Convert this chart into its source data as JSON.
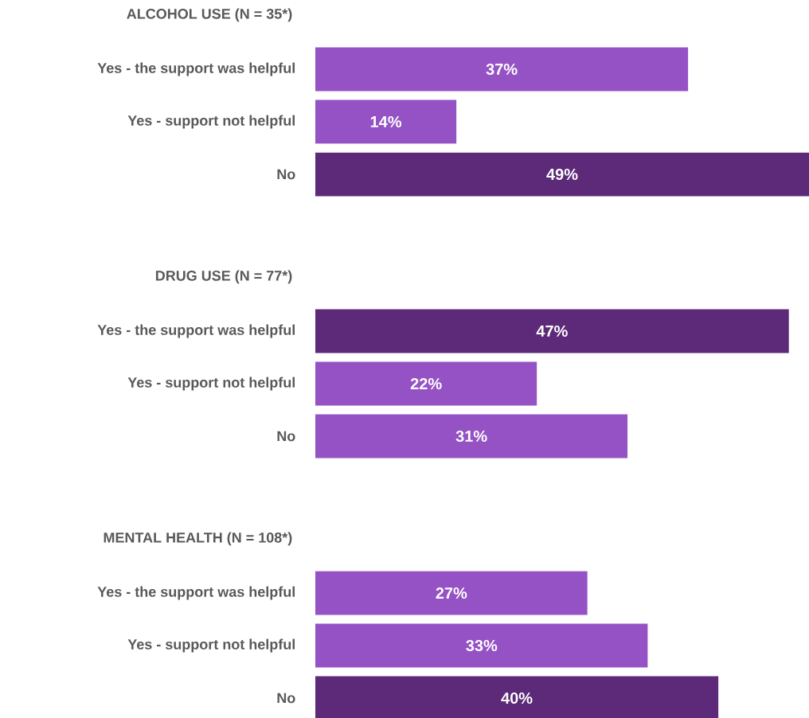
{
  "chart_data": [
    {
      "type": "bar",
      "orientation": "horizontal",
      "title": "ALCOHOL USE (N = 35*)",
      "categories": [
        "Yes - the support was helpful",
        "Yes - support not helpful",
        "No"
      ],
      "values": [
        37,
        14,
        49
      ],
      "colors": [
        "#9552c4",
        "#9552c4",
        "#5c2a78"
      ],
      "value_labels": [
        "37%",
        "14%",
        "49%"
      ],
      "tick_labels": "y"
    },
    {
      "type": "bar",
      "orientation": "horizontal",
      "title": "DRUG USE (N = 77*)",
      "categories": [
        "Yes - the support was helpful",
        "Yes - support not helpful",
        "No"
      ],
      "values": [
        47,
        22,
        31
      ],
      "colors": [
        "#5c2a78",
        "#9552c4",
        "#9552c4"
      ],
      "value_labels": [
        "47%",
        "22%",
        "31%"
      ],
      "tick_labels": "y"
    },
    {
      "type": "bar",
      "orientation": "horizontal",
      "title": "MENTAL HEALTH (N = 108*)",
      "categories": [
        "Yes - the support was helpful",
        "Yes - support not helpful",
        "No"
      ],
      "values": [
        27,
        33,
        40
      ],
      "colors": [
        "#9552c4",
        "#9552c4",
        "#5c2a78"
      ],
      "value_labels": [
        "27%",
        "33%",
        "40%"
      ],
      "tick_labels": "y"
    }
  ]
}
